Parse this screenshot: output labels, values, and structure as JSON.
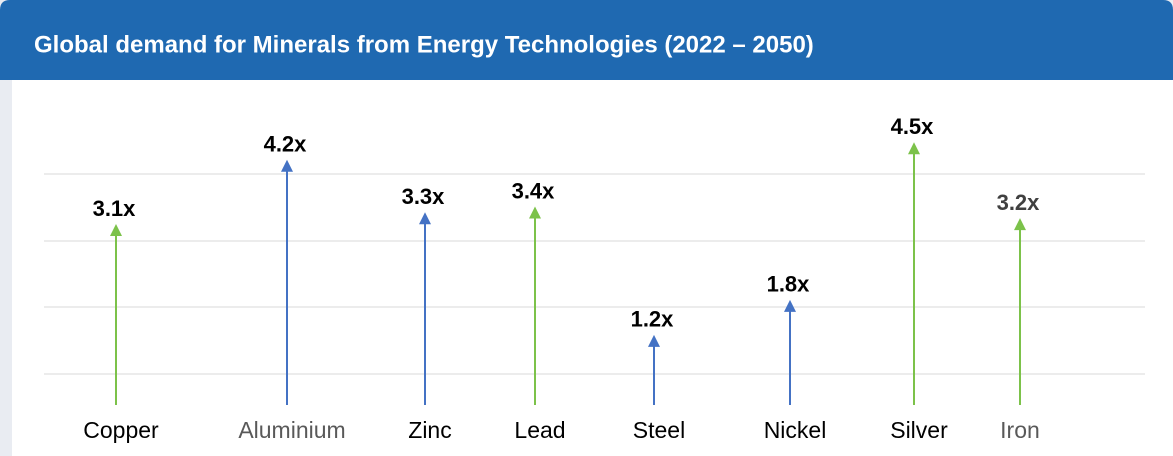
{
  "chart_data": {
    "type": "arrow",
    "title": "Global demand for Minerals from Energy Technologies (2022 – 2050)",
    "categories": [
      "Copper",
      "Aluminium",
      "Zinc",
      "Lead",
      "Steel",
      "Nickel",
      "Silver",
      "Iron"
    ],
    "values": [
      3.1,
      4.2,
      3.3,
      3.4,
      1.2,
      1.8,
      4.5,
      3.2
    ],
    "value_labels": [
      "3.1x",
      "4.2x",
      "3.3x",
      "3.4x",
      "1.2x",
      "1.8x",
      "4.5x",
      "3.2x"
    ],
    "colors": [
      "#7cc24a",
      "#4472c4",
      "#4472c4",
      "#7cc24a",
      "#4472c4",
      "#4472c4",
      "#7cc24a",
      "#7cc24a"
    ],
    "ylim": [
      0,
      5
    ]
  }
}
